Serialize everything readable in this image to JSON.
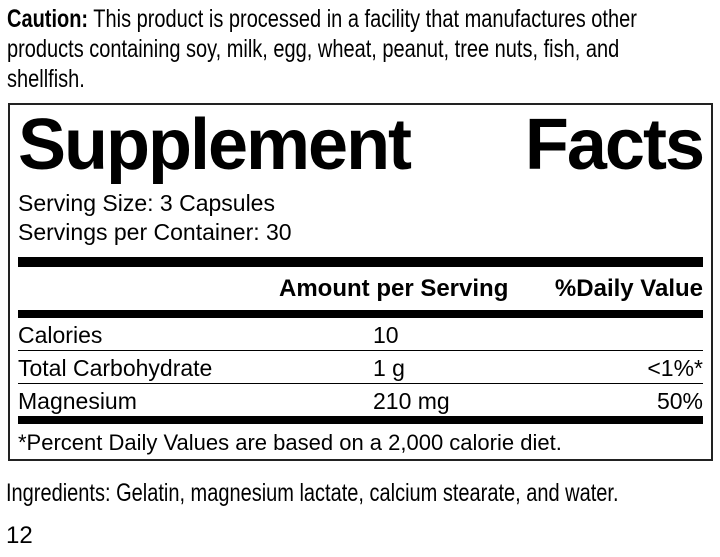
{
  "caution": {
    "label": "Caution:",
    "line1_rest": "This product is processed in a facility that manufactures other",
    "line2": "products containing soy, milk, egg, wheat, peanut, tree nuts, fish, and",
    "line3": "shellfish."
  },
  "panel": {
    "title_word1": "Supplement",
    "title_word2": "Facts",
    "serving_size": "Serving Size: 3 Capsules",
    "servings_per_container": "Servings per Container: 30",
    "columns": {
      "amount": "Amount per Serving",
      "daily_value": "%Daily Value"
    },
    "rows": [
      {
        "name": "Calories",
        "amount": "10",
        "dv": ""
      },
      {
        "name": "Total Carbohydrate",
        "amount": "1 g",
        "dv": "<1%*"
      },
      {
        "name": "Magnesium",
        "amount": "210 mg",
        "dv": "50%"
      }
    ],
    "footnote": "*Percent Daily Values are based on a 2,000 calorie diet."
  },
  "ingredients": "Ingredients: Gelatin, magnesium lactate, calcium stearate, and water.",
  "page_number": "12",
  "colors": {
    "text": "#000000",
    "rule": "#000000",
    "background": "#ffffff"
  }
}
